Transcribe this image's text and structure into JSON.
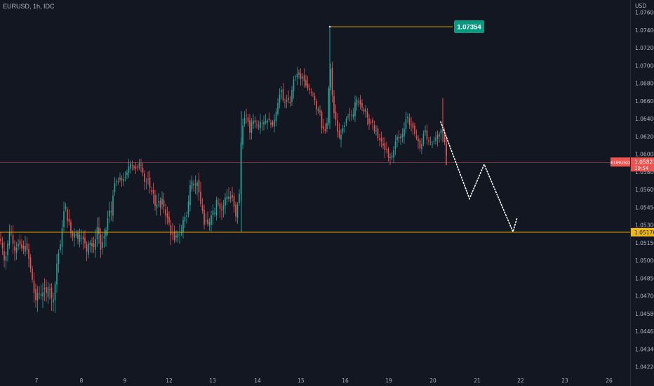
{
  "header": {
    "symbol_line": "EURUSD, 1h, IDC"
  },
  "colors": {
    "background": "#131722",
    "up": "#26a69a",
    "down": "#ef5350",
    "axis_text": "#b2b5be",
    "support_line": "#f0b90b",
    "peak_badge": "#089981",
    "price_line": "#ef5350",
    "projection": "#ffffff"
  },
  "chart_data": {
    "type": "candlestick",
    "symbol": "EURUSD",
    "timeframe": "1h",
    "source": "IDC",
    "y_unit": "USD",
    "y_ticks": [
      "1.07600",
      "1.07400",
      "1.07200",
      "1.07000",
      "1.06800",
      "1.06600",
      "1.06400",
      "1.06200",
      "1.06000",
      "1.05800",
      "1.05600",
      "1.05450",
      "1.05300",
      "1.05150",
      "1.05000",
      "1.04850",
      "1.04700",
      "1.04580",
      "1.04460",
      "1.04340",
      "1.04220"
    ],
    "x_ticks": [
      "7",
      "8",
      "9",
      "12",
      "13",
      "14",
      "15",
      "16",
      "19",
      "20",
      "21",
      "22",
      "23",
      "26"
    ],
    "close_path": [
      [
        0,
        1.0512
      ],
      [
        3,
        1.0506
      ],
      [
        6,
        1.0494
      ],
      [
        9,
        1.0498
      ],
      [
        12,
        1.0513
      ],
      [
        15,
        1.0522
      ],
      [
        18,
        1.0509
      ],
      [
        21,
        1.0502
      ],
      [
        24,
        1.0505
      ],
      [
        27,
        1.0509
      ],
      [
        30,
        1.0505
      ],
      [
        33,
        1.0503
      ],
      [
        36,
        1.0506
      ],
      [
        39,
        1.0502
      ],
      [
        42,
        1.0492
      ],
      [
        45,
        1.0482
      ],
      [
        48,
        1.0468
      ],
      [
        51,
        1.0462
      ],
      [
        54,
        1.0468
      ],
      [
        57,
        1.0466
      ],
      [
        60,
        1.0466
      ],
      [
        63,
        1.047
      ],
      [
        66,
        1.0467
      ],
      [
        69,
        1.0472
      ],
      [
        72,
        1.0468
      ],
      [
        75,
        1.0459
      ],
      [
        78,
        1.047
      ],
      [
        81,
        1.0491
      ],
      [
        84,
        1.0502
      ],
      [
        87,
        1.051
      ],
      [
        90,
        1.0532
      ],
      [
        93,
        1.0542
      ],
      [
        96,
        1.0527
      ],
      [
        99,
        1.0526
      ],
      [
        102,
        1.0512
      ],
      [
        105,
        1.0517
      ],
      [
        108,
        1.0517
      ],
      [
        111,
        1.0512
      ],
      [
        114,
        1.0516
      ],
      [
        117,
        1.0511
      ],
      [
        120,
        1.0512
      ],
      [
        123,
        1.05
      ],
      [
        126,
        1.0508
      ],
      [
        129,
        1.0509
      ],
      [
        132,
        1.0504
      ],
      [
        135,
        1.0506
      ],
      [
        138,
        1.0523
      ],
      [
        141,
        1.0516
      ],
      [
        144,
        1.05
      ],
      [
        147,
        1.0514
      ],
      [
        150,
        1.0515
      ],
      [
        153,
        1.0528
      ],
      [
        156,
        1.0536
      ],
      [
        159,
        1.0534
      ],
      [
        162,
        1.0556
      ],
      [
        165,
        1.0562
      ],
      [
        168,
        1.0559
      ],
      [
        171,
        1.0565
      ],
      [
        174,
        1.0562
      ],
      [
        177,
        1.0564
      ],
      [
        180,
        1.0568
      ],
      [
        183,
        1.0577
      ],
      [
        186,
        1.0581
      ],
      [
        189,
        1.0578
      ],
      [
        192,
        1.0575
      ],
      [
        195,
        1.0575
      ],
      [
        198,
        1.0582
      ],
      [
        201,
        1.0579
      ],
      [
        204,
        1.0569
      ],
      [
        207,
        1.0556
      ],
      [
        210,
        1.0566
      ],
      [
        213,
        1.0556
      ],
      [
        216,
        1.0552
      ],
      [
        219,
        1.055
      ],
      [
        222,
        1.0535
      ],
      [
        225,
        1.0547
      ],
      [
        228,
        1.0537
      ],
      [
        231,
        1.0546
      ],
      [
        234,
        1.0538
      ],
      [
        237,
        1.0529
      ],
      [
        240,
        1.0531
      ],
      [
        243,
        1.0515
      ],
      [
        246,
        1.0516
      ],
      [
        249,
        1.051
      ],
      [
        252,
        1.0517
      ],
      [
        255,
        1.0516
      ],
      [
        258,
        1.0516
      ],
      [
        261,
        1.0528
      ],
      [
        264,
        1.0531
      ],
      [
        267,
        1.0532
      ],
      [
        270,
        1.0555
      ],
      [
        273,
        1.0562
      ],
      [
        276,
        1.0557
      ],
      [
        279,
        1.0559
      ],
      [
        282,
        1.056
      ],
      [
        285,
        1.0543
      ],
      [
        288,
        1.0538
      ],
      [
        291,
        1.0524
      ],
      [
        294,
        1.0528
      ],
      [
        297,
        1.0523
      ],
      [
        300,
        1.053
      ],
      [
        303,
        1.0536
      ],
      [
        306,
        1.0534
      ],
      [
        309,
        1.0547
      ],
      [
        312,
        1.054
      ],
      [
        315,
        1.0535
      ],
      [
        318,
        1.0539
      ],
      [
        321,
        1.0547
      ],
      [
        324,
        1.0548
      ],
      [
        327,
        1.0545
      ],
      [
        330,
        1.055
      ],
      [
        333,
        1.0541
      ],
      [
        336,
        1.0531
      ],
      [
        339,
        1.0543
      ],
      [
        341,
        1.055
      ],
      [
        344,
        1.0616
      ],
      [
        347,
        1.0628
      ],
      [
        350,
        1.0637
      ],
      [
        353,
        1.063
      ],
      [
        356,
        1.0616
      ],
      [
        359,
        1.063
      ],
      [
        362,
        1.0629
      ],
      [
        365,
        1.0626
      ],
      [
        368,
        1.0623
      ],
      [
        371,
        1.0628
      ],
      [
        374,
        1.0626
      ],
      [
        377,
        1.0629
      ],
      [
        380,
        1.0629
      ],
      [
        383,
        1.0631
      ],
      [
        386,
        1.0625
      ],
      [
        389,
        1.0624
      ],
      [
        392,
        1.0634
      ],
      [
        395,
        1.0645
      ],
      [
        398,
        1.0658
      ],
      [
        401,
        1.0664
      ],
      [
        404,
        1.065
      ],
      [
        407,
        1.0649
      ],
      [
        410,
        1.0656
      ],
      [
        413,
        1.0646
      ],
      [
        416,
        1.0664
      ],
      [
        419,
        1.0678
      ],
      [
        422,
        1.068
      ],
      [
        425,
        1.0684
      ],
      [
        428,
        1.0676
      ],
      [
        431,
        1.0679
      ],
      [
        434,
        1.0673
      ],
      [
        437,
        1.0667
      ],
      [
        440,
        1.0665
      ],
      [
        443,
        1.0661
      ],
      [
        446,
        1.0659
      ],
      [
        449,
        1.0651
      ],
      [
        452,
        1.0638
      ],
      [
        455,
        1.0648
      ],
      [
        458,
        1.0621
      ],
      [
        461,
        1.062
      ],
      [
        464,
        1.0617
      ],
      [
        467,
        1.0632
      ],
      [
        470,
        1.07
      ],
      [
        473,
        1.0662
      ],
      [
        476,
        1.0638
      ],
      [
        479,
        1.0629
      ],
      [
        482,
        1.0611
      ],
      [
        485,
        1.061
      ],
      [
        488,
        1.062
      ],
      [
        491,
        1.0624
      ],
      [
        494,
        1.0633
      ],
      [
        497,
        1.0635
      ],
      [
        500,
        1.0637
      ],
      [
        503,
        1.0634
      ],
      [
        506,
        1.065
      ],
      [
        509,
        1.0654
      ],
      [
        512,
        1.0648
      ],
      [
        515,
        1.0647
      ],
      [
        518,
        1.0639
      ],
      [
        521,
        1.0643
      ],
      [
        524,
        1.0631
      ],
      [
        527,
        1.0623
      ],
      [
        530,
        1.0632
      ],
      [
        533,
        1.0617
      ],
      [
        536,
        1.0618
      ],
      [
        539,
        1.0608
      ],
      [
        542,
        1.0608
      ],
      [
        545,
        1.0604
      ],
      [
        548,
        1.0596
      ],
      [
        551,
        1.0596
      ],
      [
        554,
        1.0586
      ],
      [
        557,
        1.0588
      ],
      [
        560,
        1.0592
      ],
      [
        563,
        1.0605
      ],
      [
        566,
        1.0611
      ],
      [
        569,
        1.0609
      ],
      [
        572,
        1.0613
      ],
      [
        575,
        1.0615
      ],
      [
        578,
        1.0631
      ],
      [
        581,
        1.0634
      ],
      [
        584,
        1.0623
      ],
      [
        587,
        1.0625
      ],
      [
        590,
        1.0617
      ],
      [
        593,
        1.061
      ],
      [
        596,
        1.0606
      ],
      [
        599,
        1.0597
      ],
      [
        602,
        1.0606
      ],
      [
        605,
        1.0623
      ],
      [
        608,
        1.0609
      ],
      [
        611,
        1.0606
      ],
      [
        614,
        1.0605
      ],
      [
        617,
        1.0602
      ],
      [
        620,
        1.0611
      ],
      [
        623,
        1.0608
      ],
      [
        626,
        1.0614
      ],
      [
        629,
        1.062
      ],
      [
        632,
        1.0614
      ],
      [
        635,
        1.0597
      ],
      [
        637,
        1.05823
      ]
    ],
    "annotations": {
      "peak_label": "1.07354",
      "peak_value": 1.07354,
      "support_label": "1.05176",
      "support_value": 1.05176,
      "price_badge_symbol": "EURUSD",
      "price_badge_value": "1.05823",
      "price_badge_countdown": "19:54",
      "projection": [
        [
          1.0628,
          1.0546
        ],
        [
          1.0546,
          1.058
        ],
        [
          1.058,
          1.0518
        ],
        [
          1.0518,
          1.053
        ]
      ]
    }
  }
}
